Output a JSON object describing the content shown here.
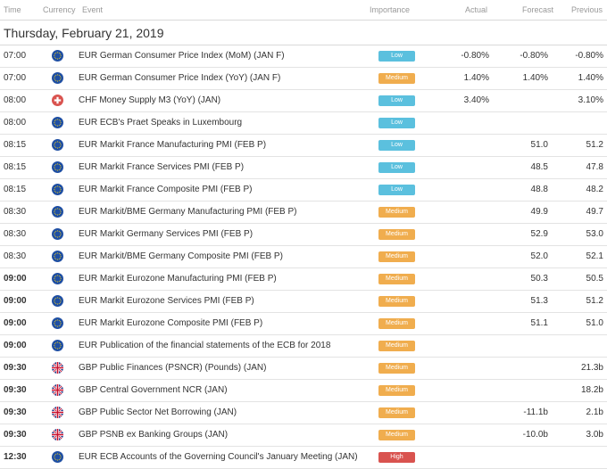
{
  "headers": {
    "time": "Time",
    "currency": "Currency",
    "event": "Event",
    "importance": "Importance",
    "actual": "Actual",
    "forecast": "Forecast",
    "previous": "Previous"
  },
  "date": "Thursday, February 21, 2019",
  "colors": {
    "low": "#5bc0de",
    "medium": "#f0ad4e",
    "high": "#d9534f",
    "eur": "#1f4fa3",
    "chf": "#d9534f"
  },
  "rows": [
    {
      "time": "07:00",
      "currency": "eur",
      "event": "EUR German Consumer Price Index (MoM) (JAN F)",
      "importance": "Low",
      "actual": "-0.80%",
      "forecast": "-0.80%",
      "previous": "-0.80%"
    },
    {
      "time": "07:00",
      "currency": "eur",
      "event": "EUR German Consumer Price Index (YoY) (JAN F)",
      "importance": "Medium",
      "actual": "1.40%",
      "forecast": "1.40%",
      "previous": "1.40%"
    },
    {
      "time": "08:00",
      "currency": "chf",
      "event": "CHF Money Supply M3 (YoY) (JAN)",
      "importance": "Low",
      "actual": "3.40%",
      "forecast": "",
      "previous": "3.10%"
    },
    {
      "time": "08:00",
      "currency": "eur",
      "event": "EUR ECB's Praet Speaks in Luxembourg",
      "importance": "Low",
      "actual": "",
      "forecast": "",
      "previous": ""
    },
    {
      "time": "08:15",
      "currency": "eur",
      "event": "EUR Markit France Manufacturing PMI (FEB P)",
      "importance": "Low",
      "actual": "",
      "forecast": "51.0",
      "previous": "51.2"
    },
    {
      "time": "08:15",
      "currency": "eur",
      "event": "EUR Markit France Services PMI (FEB P)",
      "importance": "Low",
      "actual": "",
      "forecast": "48.5",
      "previous": "47.8"
    },
    {
      "time": "08:15",
      "currency": "eur",
      "event": "EUR Markit France Composite PMI (FEB P)",
      "importance": "Low",
      "actual": "",
      "forecast": "48.8",
      "previous": "48.2"
    },
    {
      "time": "08:30",
      "currency": "eur",
      "event": "EUR Markit/BME Germany Manufacturing PMI (FEB P)",
      "importance": "Medium",
      "actual": "",
      "forecast": "49.9",
      "previous": "49.7"
    },
    {
      "time": "08:30",
      "currency": "eur",
      "event": "EUR Markit Germany Services PMI (FEB P)",
      "importance": "Medium",
      "actual": "",
      "forecast": "52.9",
      "previous": "53.0"
    },
    {
      "time": "08:30",
      "currency": "eur",
      "event": "EUR Markit/BME Germany Composite PMI (FEB P)",
      "importance": "Medium",
      "actual": "",
      "forecast": "52.0",
      "previous": "52.1"
    },
    {
      "time": "09:00",
      "currency": "eur",
      "event": "EUR Markit Eurozone Manufacturing PMI (FEB P)",
      "importance": "Medium",
      "actual": "",
      "forecast": "50.3",
      "previous": "50.5",
      "bold": true
    },
    {
      "time": "09:00",
      "currency": "eur",
      "event": "EUR Markit Eurozone Services PMI (FEB P)",
      "importance": "Medium",
      "actual": "",
      "forecast": "51.3",
      "previous": "51.2",
      "bold": true
    },
    {
      "time": "09:00",
      "currency": "eur",
      "event": "EUR Markit Eurozone Composite PMI (FEB P)",
      "importance": "Medium",
      "actual": "",
      "forecast": "51.1",
      "previous": "51.0",
      "bold": true
    },
    {
      "time": "09:00",
      "currency": "eur",
      "event": "EUR Publication of the financial statements of the ECB for 2018",
      "importance": "Medium",
      "actual": "",
      "forecast": "",
      "previous": "",
      "bold": true
    },
    {
      "time": "09:30",
      "currency": "gbp",
      "event": "GBP Public Finances (PSNCR) (Pounds) (JAN)",
      "importance": "Medium",
      "actual": "",
      "forecast": "",
      "previous": "21.3b",
      "bold": true
    },
    {
      "time": "09:30",
      "currency": "gbp",
      "event": "GBP Central Government NCR (JAN)",
      "importance": "Medium",
      "actual": "",
      "forecast": "",
      "previous": "18.2b",
      "bold": true
    },
    {
      "time": "09:30",
      "currency": "gbp",
      "event": "GBP Public Sector Net Borrowing (JAN)",
      "importance": "Medium",
      "actual": "",
      "forecast": "-11.1b",
      "previous": "2.1b",
      "bold": true
    },
    {
      "time": "09:30",
      "currency": "gbp",
      "event": "GBP PSNB ex Banking Groups (JAN)",
      "importance": "Medium",
      "actual": "",
      "forecast": "-10.0b",
      "previous": "3.0b",
      "bold": true
    },
    {
      "time": "12:30",
      "currency": "eur",
      "event": "EUR ECB Accounts of the Governing Council's January Meeting (JAN)",
      "importance": "High",
      "actual": "",
      "forecast": "",
      "previous": "",
      "bold": true
    }
  ]
}
